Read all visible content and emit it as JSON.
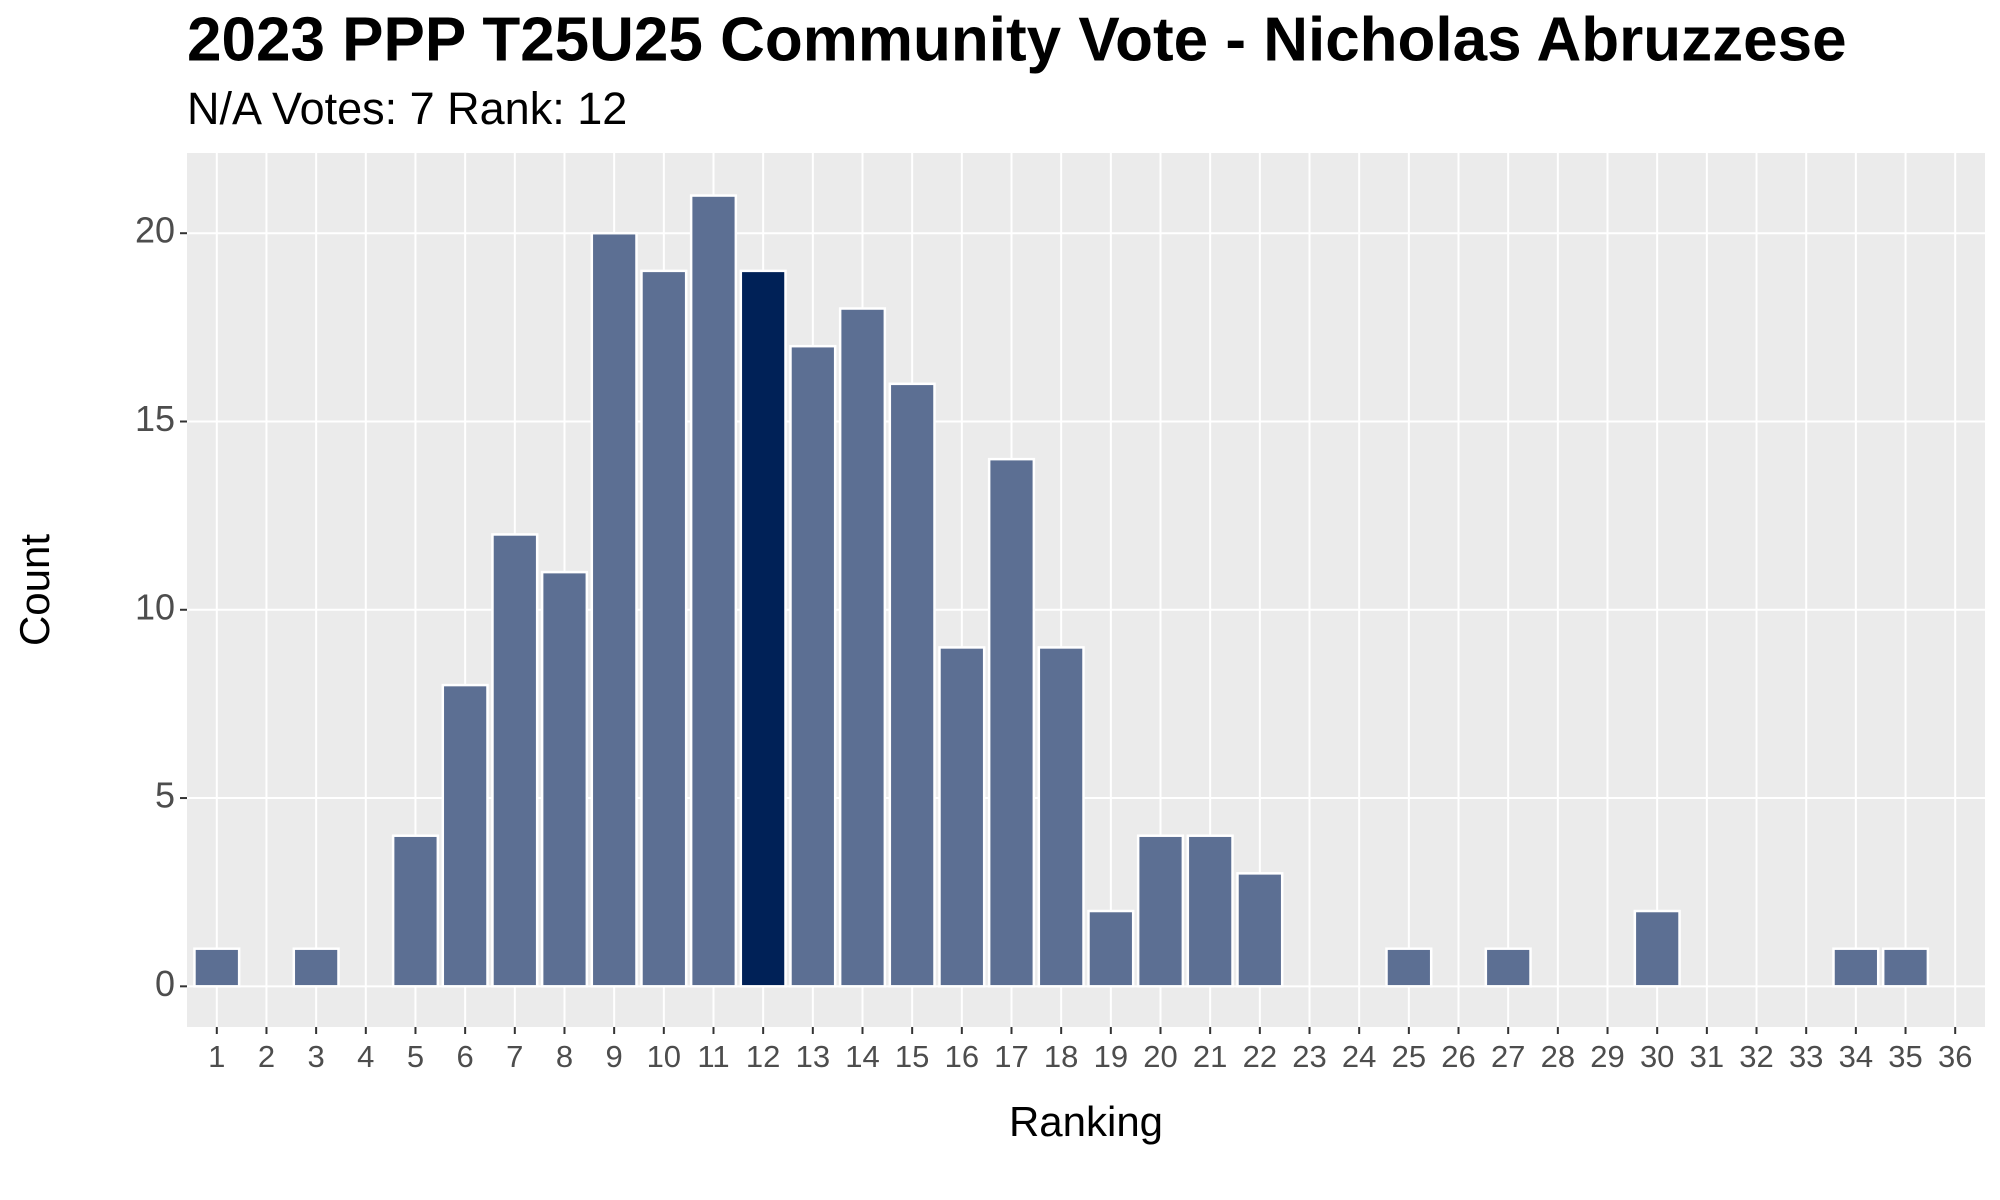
{
  "chart_data": {
    "type": "bar",
    "title": "2023 PPP T25U25 Community Vote - Nicholas Abruzzese",
    "subtitle": "N/A Votes: 7  Rank: 12",
    "x_label": "Ranking",
    "y_label": "Count",
    "categories": [
      "1",
      "2",
      "3",
      "4",
      "5",
      "6",
      "7",
      "8",
      "9",
      "10",
      "11",
      "12",
      "13",
      "14",
      "15",
      "16",
      "17",
      "18",
      "19",
      "20",
      "21",
      "22",
      "23",
      "24",
      "25",
      "26",
      "27",
      "28",
      "29",
      "30",
      "31",
      "32",
      "33",
      "34",
      "35",
      "36"
    ],
    "values": [
      1,
      0,
      1,
      0,
      4,
      8,
      12,
      11,
      20,
      19,
      21,
      19,
      17,
      18,
      16,
      9,
      14,
      9,
      2,
      4,
      4,
      3,
      0,
      0,
      1,
      0,
      1,
      0,
      0,
      2,
      0,
      0,
      0,
      1,
      1,
      0
    ],
    "colors": [
      "#5c6f93",
      "#5c6f93",
      "#5c6f93",
      "#5c6f93",
      "#5c6f93",
      "#5c6f93",
      "#5c6f93",
      "#5c6f93",
      "#5c6f93",
      "#5c6f93",
      "#5c6f93",
      "#002157",
      "#5c6f93",
      "#5c6f93",
      "#5c6f93",
      "#5c6f93",
      "#5c6f93",
      "#5c6f93",
      "#5c6f93",
      "#5c6f93",
      "#5c6f93",
      "#5c6f93",
      "#5c6f93",
      "#5c6f93",
      "#5c6f93",
      "#5c6f93",
      "#5c6f93",
      "#5c6f93",
      "#5c6f93",
      "#5c6f93",
      "#5c6f93",
      "#5c6f93",
      "#5c6f93",
      "#5c6f93",
      "#5c6f93",
      "#5c6f93"
    ],
    "ylim": [
      -1.08,
      22.13
    ],
    "yticks": [
      0,
      5,
      10,
      15,
      20
    ],
    "grid": true
  }
}
